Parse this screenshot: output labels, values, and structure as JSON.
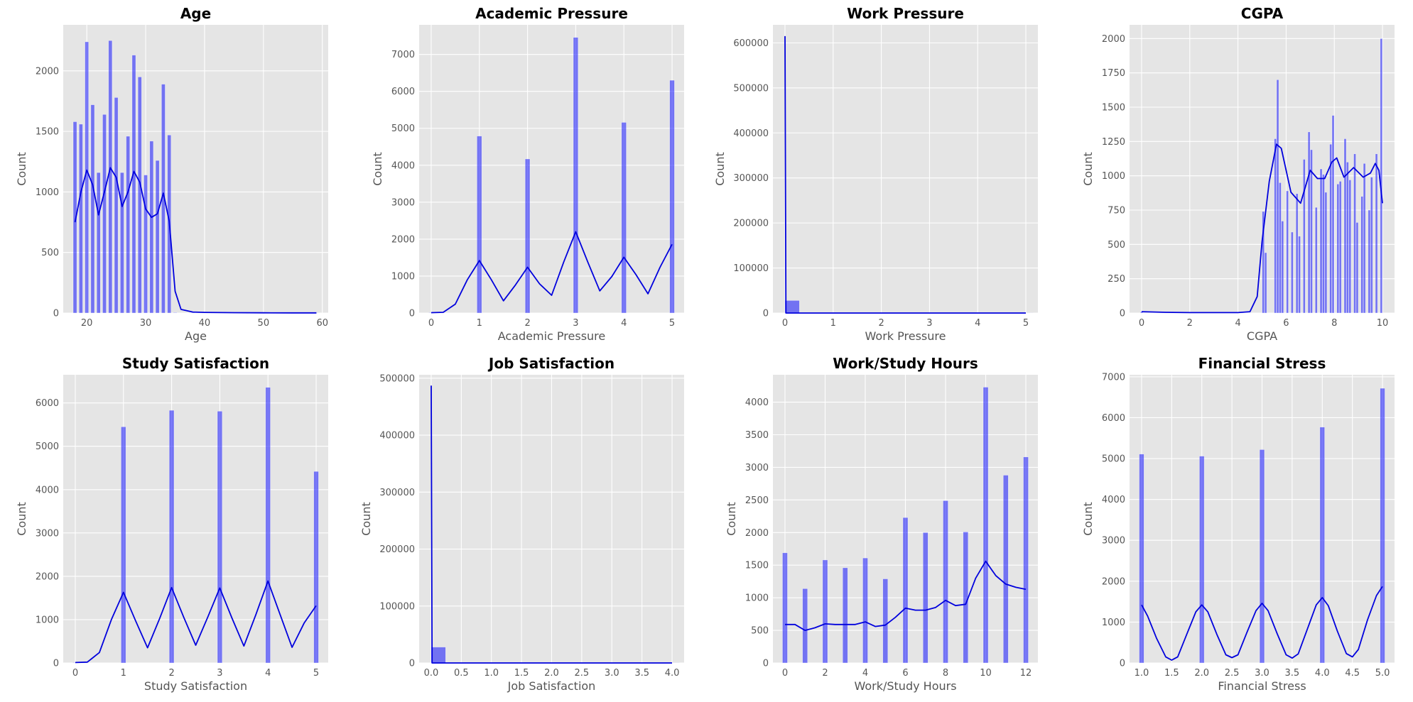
{
  "style": {
    "background": "#e5e5e5",
    "grid_color": "#ffffff",
    "bar_color": "#0000ff",
    "bar_alpha": 0.5,
    "kde_color": "#0000dd"
  },
  "chart_data": [
    {
      "type": "bar",
      "title": "Age",
      "xlabel": "Age",
      "ylabel": "Count",
      "grid": true,
      "xlim": [
        16,
        61
      ],
      "ylim": [
        0,
        2380
      ],
      "xticks": [
        20,
        30,
        40,
        50,
        60
      ],
      "xtick_labels": [
        "20",
        "30",
        "40",
        "50",
        "60"
      ],
      "yticks": [
        0,
        500,
        1000,
        1500,
        2000
      ],
      "ytick_labels": [
        "0",
        "500",
        "1000",
        "1500",
        "2000"
      ],
      "bar_width": 0.62,
      "bars": [
        [
          18,
          1580
        ],
        [
          19,
          1560
        ],
        [
          20,
          2240
        ],
        [
          21,
          1720
        ],
        [
          22,
          1160
        ],
        [
          23,
          1640
        ],
        [
          24,
          2250
        ],
        [
          25,
          1780
        ],
        [
          26,
          1160
        ],
        [
          27,
          1460
        ],
        [
          28,
          2130
        ],
        [
          29,
          1950
        ],
        [
          30,
          1140
        ],
        [
          31,
          1420
        ],
        [
          32,
          1260
        ],
        [
          33,
          1890
        ],
        [
          34,
          1470
        ],
        [
          35,
          4
        ],
        [
          38,
          3
        ],
        [
          41,
          2
        ],
        [
          43,
          2
        ],
        [
          46,
          1
        ],
        [
          48,
          2
        ],
        [
          56,
          1
        ],
        [
          59,
          1
        ]
      ],
      "kde": [
        [
          18,
          750
        ],
        [
          19,
          1000
        ],
        [
          20,
          1180
        ],
        [
          21,
          1060
        ],
        [
          22,
          810
        ],
        [
          23,
          1000
        ],
        [
          24,
          1200
        ],
        [
          25,
          1120
        ],
        [
          26,
          880
        ],
        [
          27,
          1000
        ],
        [
          28,
          1170
        ],
        [
          29,
          1080
        ],
        [
          30,
          860
        ],
        [
          31,
          790
        ],
        [
          32,
          820
        ],
        [
          33,
          990
        ],
        [
          34,
          760
        ],
        [
          35,
          180
        ],
        [
          36,
          30
        ],
        [
          38,
          8
        ],
        [
          40,
          5
        ],
        [
          45,
          3
        ],
        [
          50,
          2
        ],
        [
          55,
          1
        ],
        [
          59,
          1
        ]
      ]
    },
    {
      "type": "bar",
      "title": "Academic Pressure",
      "xlabel": "Academic Pressure",
      "ylabel": "Count",
      "grid": true,
      "xlim": [
        -0.25,
        5.25
      ],
      "ylim": [
        0,
        7800
      ],
      "xticks": [
        0,
        1,
        2,
        3,
        4,
        5
      ],
      "xtick_labels": [
        "0",
        "1",
        "2",
        "3",
        "4",
        "5"
      ],
      "yticks": [
        0,
        1000,
        2000,
        3000,
        4000,
        5000,
        6000,
        7000
      ],
      "ytick_labels": [
        "0",
        "1000",
        "2000",
        "3000",
        "4000",
        "5000",
        "6000",
        "7000"
      ],
      "bar_width": 0.1,
      "bars": [
        [
          0,
          9
        ],
        [
          1,
          4790
        ],
        [
          2,
          4170
        ],
        [
          3,
          7460
        ],
        [
          4,
          5160
        ],
        [
          5,
          6300
        ]
      ],
      "kde": [
        [
          0,
          10
        ],
        [
          0.25,
          20
        ],
        [
          0.5,
          240
        ],
        [
          0.75,
          900
        ],
        [
          1,
          1420
        ],
        [
          1.25,
          900
        ],
        [
          1.5,
          330
        ],
        [
          1.75,
          760
        ],
        [
          2,
          1240
        ],
        [
          2.25,
          790
        ],
        [
          2.5,
          480
        ],
        [
          2.75,
          1380
        ],
        [
          3,
          2200
        ],
        [
          3.25,
          1380
        ],
        [
          3.5,
          600
        ],
        [
          3.75,
          990
        ],
        [
          4,
          1510
        ],
        [
          4.25,
          1040
        ],
        [
          4.5,
          520
        ],
        [
          4.75,
          1240
        ],
        [
          5,
          1860
        ]
      ]
    },
    {
      "type": "bar",
      "title": "Work Pressure",
      "xlabel": "Work Pressure",
      "ylabel": "Count",
      "grid": true,
      "xlim": [
        -0.25,
        5.25
      ],
      "ylim": [
        0,
        640000
      ],
      "xticks": [
        0,
        1,
        2,
        3,
        4,
        5
      ],
      "xtick_labels": [
        "0",
        "1",
        "2",
        "3",
        "4",
        "5"
      ],
      "yticks": [
        0,
        100000,
        200000,
        300000,
        400000,
        500000,
        600000
      ],
      "ytick_labels": [
        "0",
        "100000",
        "200000",
        "300000",
        "400000",
        "500000",
        "600000"
      ],
      "bar_width": 0.3,
      "bars": [
        [
          0.15,
          27900
        ],
        [
          3,
          150
        ],
        [
          5,
          150
        ]
      ],
      "kde": [
        [
          0,
          615000
        ],
        [
          0.02,
          0
        ],
        [
          5,
          0
        ]
      ]
    },
    {
      "type": "bar",
      "title": "CGPA",
      "xlabel": "CGPA",
      "ylabel": "Count",
      "grid": true,
      "xlim": [
        -0.5,
        10.5
      ],
      "ylim": [
        0,
        2100
      ],
      "xticks": [
        0,
        2,
        4,
        6,
        8,
        10
      ],
      "xtick_labels": [
        "0",
        "2",
        "4",
        "6",
        "8",
        "10"
      ],
      "yticks": [
        0,
        250,
        500,
        750,
        1000,
        1250,
        1500,
        1750,
        2000
      ],
      "ytick_labels": [
        "0",
        "250",
        "500",
        "750",
        "1000",
        "1250",
        "1500",
        "1750",
        "2000"
      ],
      "bar_width": 0.09,
      "bars": [
        [
          0,
          9
        ],
        [
          5.05,
          740
        ],
        [
          5.15,
          440
        ],
        [
          5.55,
          1270
        ],
        [
          5.65,
          1700
        ],
        [
          5.75,
          950
        ],
        [
          5.85,
          670
        ],
        [
          6.05,
          890
        ],
        [
          6.25,
          590
        ],
        [
          6.45,
          870
        ],
        [
          6.55,
          560
        ],
        [
          6.75,
          1120
        ],
        [
          6.95,
          1320
        ],
        [
          7.05,
          1190
        ],
        [
          7.25,
          770
        ],
        [
          7.45,
          1050
        ],
        [
          7.55,
          1010
        ],
        [
          7.65,
          880
        ],
        [
          7.85,
          1230
        ],
        [
          7.95,
          1440
        ],
        [
          8.15,
          940
        ],
        [
          8.25,
          960
        ],
        [
          8.45,
          1270
        ],
        [
          8.55,
          1100
        ],
        [
          8.65,
          970
        ],
        [
          8.85,
          1160
        ],
        [
          8.95,
          660
        ],
        [
          9.15,
          850
        ],
        [
          9.25,
          1090
        ],
        [
          9.45,
          750
        ],
        [
          9.55,
          990
        ],
        [
          9.75,
          1160
        ],
        [
          9.95,
          2000
        ]
      ],
      "kde": [
        [
          0,
          10
        ],
        [
          1,
          5
        ],
        [
          2,
          3
        ],
        [
          3,
          3
        ],
        [
          4,
          3
        ],
        [
          4.5,
          10
        ],
        [
          4.8,
          120
        ],
        [
          5,
          520
        ],
        [
          5.3,
          960
        ],
        [
          5.6,
          1230
        ],
        [
          5.8,
          1200
        ],
        [
          6.2,
          880
        ],
        [
          6.6,
          800
        ],
        [
          7,
          1040
        ],
        [
          7.3,
          980
        ],
        [
          7.6,
          980
        ],
        [
          7.9,
          1100
        ],
        [
          8.1,
          1130
        ],
        [
          8.4,
          990
        ],
        [
          8.8,
          1060
        ],
        [
          9.2,
          990
        ],
        [
          9.5,
          1020
        ],
        [
          9.7,
          1090
        ],
        [
          9.85,
          1040
        ],
        [
          10,
          800
        ]
      ]
    },
    {
      "type": "bar",
      "title": "Study Satisfaction",
      "xlabel": "Study Satisfaction",
      "ylabel": "Count",
      "grid": true,
      "xlim": [
        -0.25,
        5.25
      ],
      "ylim": [
        0,
        6650
      ],
      "xticks": [
        0,
        1,
        2,
        3,
        4,
        5
      ],
      "xtick_labels": [
        "0",
        "1",
        "2",
        "3",
        "4",
        "5"
      ],
      "yticks": [
        0,
        1000,
        2000,
        3000,
        4000,
        5000,
        6000
      ],
      "ytick_labels": [
        "0",
        "1000",
        "2000",
        "3000",
        "4000",
        "5000",
        "6000"
      ],
      "bar_width": 0.1,
      "bars": [
        [
          0,
          9
        ],
        [
          1,
          5450
        ],
        [
          2,
          5830
        ],
        [
          3,
          5810
        ],
        [
          4,
          6360
        ],
        [
          5,
          4420
        ]
      ],
      "kde": [
        [
          0,
          10
        ],
        [
          0.25,
          20
        ],
        [
          0.5,
          240
        ],
        [
          0.75,
          1000
        ],
        [
          1,
          1630
        ],
        [
          1.25,
          980
        ],
        [
          1.5,
          350
        ],
        [
          1.75,
          1020
        ],
        [
          2,
          1740
        ],
        [
          2.25,
          1060
        ],
        [
          2.5,
          410
        ],
        [
          2.75,
          1060
        ],
        [
          3,
          1730
        ],
        [
          3.25,
          1040
        ],
        [
          3.5,
          390
        ],
        [
          3.75,
          1120
        ],
        [
          4,
          1890
        ],
        [
          4.25,
          1120
        ],
        [
          4.5,
          360
        ],
        [
          4.75,
          920
        ],
        [
          5,
          1320
        ]
      ]
    },
    {
      "type": "bar",
      "title": "Job Satisfaction",
      "xlabel": "Job Satisfaction",
      "ylabel": "Count",
      "grid": true,
      "xlim": [
        -0.2,
        4.2
      ],
      "ylim": [
        0,
        506000
      ],
      "xticks": [
        0,
        0.5,
        1,
        1.5,
        2,
        2.5,
        3,
        3.5,
        4
      ],
      "xtick_labels": [
        "0.0",
        "0.5",
        "1.0",
        "1.5",
        "2.0",
        "2.5",
        "3.0",
        "3.5",
        "4.0"
      ],
      "yticks": [
        0,
        100000,
        200000,
        300000,
        400000,
        500000
      ],
      "ytick_labels": [
        "0",
        "100000",
        "200000",
        "300000",
        "400000",
        "500000"
      ],
      "bar_width": 0.24,
      "bars": [
        [
          0.12,
          27900
        ],
        [
          4,
          150
        ]
      ],
      "kde": [
        [
          0,
          487000
        ],
        [
          0.015,
          0
        ],
        [
          4,
          0
        ]
      ]
    },
    {
      "type": "bar",
      "title": "Work/Study Hours",
      "xlabel": "Work/Study Hours",
      "ylabel": "Count",
      "grid": true,
      "xlim": [
        -0.6,
        12.6
      ],
      "ylim": [
        0,
        4420
      ],
      "xticks": [
        0,
        2,
        4,
        6,
        8,
        10,
        12
      ],
      "xtick_labels": [
        "0",
        "2",
        "4",
        "6",
        "8",
        "10",
        "12"
      ],
      "yticks": [
        0,
        500,
        1000,
        1500,
        2000,
        2500,
        3000,
        3500,
        4000
      ],
      "ytick_labels": [
        "0",
        "500",
        "1000",
        "1500",
        "2000",
        "2500",
        "3000",
        "3500",
        "4000"
      ],
      "bar_width": 0.25,
      "bars": [
        [
          0,
          1690
        ],
        [
          1,
          1140
        ],
        [
          2,
          1580
        ],
        [
          3,
          1460
        ],
        [
          4,
          1610
        ],
        [
          5,
          1290
        ],
        [
          6,
          2230
        ],
        [
          7,
          2000
        ],
        [
          8,
          2490
        ],
        [
          9,
          2010
        ],
        [
          10,
          4230
        ],
        [
          11,
          2880
        ],
        [
          12,
          3160
        ]
      ],
      "kde": [
        [
          0,
          590
        ],
        [
          0.5,
          590
        ],
        [
          1,
          500
        ],
        [
          1.5,
          540
        ],
        [
          2,
          600
        ],
        [
          2.5,
          590
        ],
        [
          3,
          590
        ],
        [
          3.5,
          590
        ],
        [
          4,
          630
        ],
        [
          4.5,
          560
        ],
        [
          5,
          580
        ],
        [
          5.5,
          700
        ],
        [
          6,
          840
        ],
        [
          6.5,
          810
        ],
        [
          7,
          810
        ],
        [
          7.5,
          850
        ],
        [
          8,
          960
        ],
        [
          8.5,
          880
        ],
        [
          9,
          900
        ],
        [
          9.5,
          1300
        ],
        [
          10,
          1560
        ],
        [
          10.5,
          1340
        ],
        [
          11,
          1210
        ],
        [
          11.5,
          1160
        ],
        [
          12,
          1130
        ]
      ]
    },
    {
      "type": "bar",
      "title": "Financial Stress",
      "xlabel": "Financial Stress",
      "ylabel": "Count",
      "grid": true,
      "xlim": [
        0.8,
        5.2
      ],
      "ylim": [
        0,
        7050
      ],
      "xticks": [
        1,
        1.5,
        2,
        2.5,
        3,
        3.5,
        4,
        4.5,
        5
      ],
      "xtick_labels": [
        "1.0",
        "1.5",
        "2.0",
        "2.5",
        "3.0",
        "3.5",
        "4.0",
        "4.5",
        "5.0"
      ],
      "yticks": [
        0,
        1000,
        2000,
        3000,
        4000,
        5000,
        6000,
        7000
      ],
      "ytick_labels": [
        "0",
        "1000",
        "2000",
        "3000",
        "4000",
        "5000",
        "6000",
        "7000"
      ],
      "bar_width": 0.08,
      "bars": [
        [
          1,
          5110
        ],
        [
          2,
          5060
        ],
        [
          3,
          5220
        ],
        [
          4,
          5770
        ],
        [
          5,
          6720
        ]
      ],
      "kde": [
        [
          1,
          1420
        ],
        [
          1.1,
          1150
        ],
        [
          1.25,
          600
        ],
        [
          1.4,
          150
        ],
        [
          1.5,
          70
        ],
        [
          1.6,
          150
        ],
        [
          1.75,
          700
        ],
        [
          1.9,
          1250
        ],
        [
          2,
          1420
        ],
        [
          2.1,
          1250
        ],
        [
          2.25,
          700
        ],
        [
          2.4,
          200
        ],
        [
          2.5,
          130
        ],
        [
          2.6,
          200
        ],
        [
          2.75,
          750
        ],
        [
          2.9,
          1280
        ],
        [
          3,
          1460
        ],
        [
          3.1,
          1280
        ],
        [
          3.25,
          720
        ],
        [
          3.4,
          200
        ],
        [
          3.5,
          120
        ],
        [
          3.6,
          220
        ],
        [
          3.75,
          820
        ],
        [
          3.9,
          1420
        ],
        [
          4,
          1600
        ],
        [
          4.1,
          1400
        ],
        [
          4.25,
          780
        ],
        [
          4.4,
          230
        ],
        [
          4.5,
          150
        ],
        [
          4.6,
          330
        ],
        [
          4.75,
          1050
        ],
        [
          4.9,
          1650
        ],
        [
          5,
          1870
        ]
      ]
    }
  ]
}
